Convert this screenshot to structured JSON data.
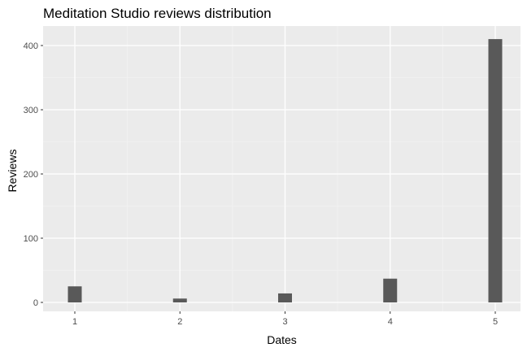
{
  "chart_data": {
    "type": "bar",
    "title": "Meditation Studio reviews distribution",
    "xlabel": "Dates",
    "ylabel": "Reviews",
    "categories": [
      "1",
      "2",
      "3",
      "4",
      "5"
    ],
    "values": [
      25,
      6,
      14,
      37,
      410
    ],
    "ylim": [
      0,
      430
    ],
    "yticks": [
      0,
      100,
      200,
      300,
      400
    ],
    "grid": true,
    "legend": "none",
    "colors": {
      "bar": "#595959",
      "panel": "#ebebeb",
      "grid_major": "#ffffff",
      "grid_minor": "#f2f2f2"
    }
  }
}
